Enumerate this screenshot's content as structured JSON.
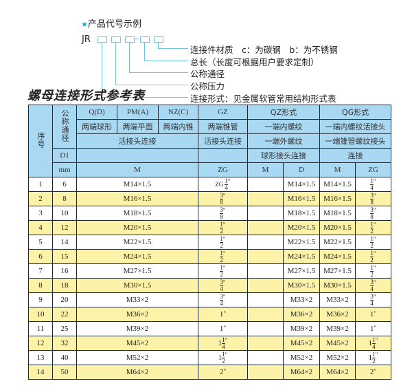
{
  "example": {
    "title": "产品代号示例",
    "code": "JR",
    "labels": [
      "连接件材质　c：为碳钢　b：为不锈钢",
      "总长（长度可根据用户要求定制）",
      "公称通径",
      "公称压力",
      "连接形式：见金属软管常用结构形式表"
    ]
  },
  "table_title": "螺母连接形式参考表",
  "header": {
    "seq": "序号",
    "dn": "公称通径",
    "d1": "D1",
    "mm": "mm",
    "qd": "Q(D)",
    "pm": "PM(A)",
    "nz": "NZ(C)",
    "gz": "GZ",
    "qz": "QZ形式",
    "qg": "QG形式",
    "qd2": "两端球形",
    "pm2": "两端平面",
    "nz2": "两端内锥",
    "gz2": "两端锥管",
    "qz2": "一端内螺纹",
    "qg2": "一端内螺纹活接头",
    "hj": "活接头连接",
    "gz3": "活接头连接",
    "qz3": "一端外螺纹",
    "qg3": "一端锥管螺纹接头",
    "qz4": "球形接头连接",
    "qg4": "连接",
    "m": "M",
    "zg": "ZG",
    "qzm": "M",
    "qzd": "D",
    "qgm": "M",
    "qgzg": "ZG"
  },
  "rows": [
    {
      "seq": "1",
      "dn": "6",
      "m": "M14×1.5",
      "gz": {
        "pre": "ZG",
        "whole": "",
        "num": "1",
        "den": "4",
        "suf": "\""
      },
      "qz_m": "",
      "qz_d": "M14×1.5",
      "qg_m": "M14×1.5",
      "qg_zg": {
        "pre": "",
        "whole": "",
        "num": "1",
        "den": "4",
        "suf": "\""
      }
    },
    {
      "seq": "2",
      "dn": "8",
      "m": "M16×1.5",
      "gz": {
        "pre": "",
        "whole": "",
        "num": "3",
        "den": "8",
        "suf": "\""
      },
      "qz_m": "",
      "qz_d": "M16×1.5",
      "qg_m": "M16×1.5",
      "qg_zg": {
        "pre": "",
        "whole": "",
        "num": "3",
        "den": "8",
        "suf": "\""
      }
    },
    {
      "seq": "3",
      "dn": "10",
      "m": "M18×1.5",
      "gz": {
        "pre": "",
        "whole": "",
        "num": "3",
        "den": "8",
        "suf": "\""
      },
      "qz_m": "",
      "qz_d": "M18×1.5",
      "qg_m": "M18×1.5",
      "qg_zg": {
        "pre": "",
        "whole": "",
        "num": "3",
        "den": "8",
        "suf": "\""
      }
    },
    {
      "seq": "4",
      "dn": "12",
      "m": "M20×1.5",
      "gz": {
        "pre": "",
        "whole": "",
        "num": "1",
        "den": "2",
        "suf": "\""
      },
      "qz_m": "",
      "qz_d": "M20×1.5",
      "qg_m": "M20×1.5",
      "qg_zg": {
        "pre": "",
        "whole": "",
        "num": "1",
        "den": "2",
        "suf": "\""
      }
    },
    {
      "seq": "5",
      "dn": "14",
      "m": "M22×1.5",
      "gz": {
        "pre": "",
        "whole": "",
        "num": "1",
        "den": "2",
        "suf": "\""
      },
      "qz_m": "",
      "qz_d": "M22×1.5",
      "qg_m": "M22×1.5",
      "qg_zg": {
        "pre": "",
        "whole": "",
        "num": "1",
        "den": "2",
        "suf": "\""
      }
    },
    {
      "seq": "6",
      "dn": "15",
      "m": "M24×1.5",
      "gz": {
        "pre": "",
        "whole": "",
        "num": "1",
        "den": "2",
        "suf": "\""
      },
      "qz_m": "",
      "qz_d": "M24×1.5",
      "qg_m": "M24×1.5",
      "qg_zg": {
        "pre": "",
        "whole": "",
        "num": "1",
        "den": "2",
        "suf": "\""
      }
    },
    {
      "seq": "7",
      "dn": "16",
      "m": "M27×1.5",
      "gz": {
        "pre": "",
        "whole": "",
        "num": "1",
        "den": "2",
        "suf": "\""
      },
      "qz_m": "",
      "qz_d": "M27×1.5",
      "qg_m": "M27×1.5",
      "qg_zg": {
        "pre": "",
        "whole": "",
        "num": "1",
        "den": "2",
        "suf": "\""
      }
    },
    {
      "seq": "8",
      "dn": "18",
      "m": "M30×1.5",
      "gz": {
        "pre": "",
        "whole": "",
        "num": "3",
        "den": "4",
        "suf": "\""
      },
      "qz_m": "",
      "qz_d": "M30×1.5",
      "qg_m": "M30×1.5",
      "qg_zg": {
        "pre": "",
        "whole": "",
        "num": "3",
        "den": "4",
        "suf": "\""
      }
    },
    {
      "seq": "9",
      "dn": "20",
      "m": "M33×2",
      "gz": {
        "pre": "",
        "whole": "",
        "num": "3",
        "den": "4",
        "suf": "\""
      },
      "qz_m": "",
      "qz_d": "M33×2",
      "qg_m": "M33×2",
      "qg_zg": {
        "pre": "",
        "whole": "",
        "num": "3",
        "den": "4",
        "suf": "\""
      }
    },
    {
      "seq": "10",
      "dn": "22",
      "m": "M36×2",
      "gz": {
        "pre": "",
        "whole": "1",
        "num": "",
        "den": "",
        "suf": "\""
      },
      "qz_m": "",
      "qz_d": "M36×2",
      "qg_m": "M36×2",
      "qg_zg": {
        "pre": "",
        "whole": "1",
        "num": "",
        "den": "",
        "suf": "\""
      }
    },
    {
      "seq": "11",
      "dn": "25",
      "m": "M39×2",
      "gz": {
        "pre": "",
        "whole": "1",
        "num": "",
        "den": "",
        "suf": "\""
      },
      "qz_m": "",
      "qz_d": "M39×2",
      "qg_m": "M39×2",
      "qg_zg": {
        "pre": "",
        "whole": "1",
        "num": "",
        "den": "",
        "suf": "\""
      }
    },
    {
      "seq": "12",
      "dn": "32",
      "m": "M45×2",
      "gz": {
        "pre": "",
        "whole": "1",
        "num": "1",
        "den": "4",
        "suf": "\""
      },
      "qz_m": "",
      "qz_d": "M45×2",
      "qg_m": "M45×2",
      "qg_zg": {
        "pre": "",
        "whole": "1",
        "num": "1",
        "den": "4",
        "suf": "\""
      }
    },
    {
      "seq": "13",
      "dn": "40",
      "m": "M52×2",
      "gz": {
        "pre": "",
        "whole": "1",
        "num": "1",
        "den": "2",
        "suf": "\""
      },
      "qz_m": "",
      "qz_d": "M52×2",
      "qg_m": "M52×2",
      "qg_zg": {
        "pre": "",
        "whole": "1",
        "num": "1",
        "den": "2",
        "suf": "\""
      }
    },
    {
      "seq": "14",
      "dn": "50",
      "m": "M64×2",
      "gz": {
        "pre": "",
        "whole": "2",
        "num": "",
        "den": "",
        "suf": "\""
      },
      "qz_m": "",
      "qz_d": "M64×2",
      "qg_m": "M64×2",
      "qg_zg": {
        "pre": "",
        "whole": "2",
        "num": "",
        "den": "",
        "suf": "\""
      }
    }
  ],
  "colors": {
    "header": "#a9d9f2",
    "row_alt": "#fcf3a8",
    "accent": "#2aa7d8"
  }
}
